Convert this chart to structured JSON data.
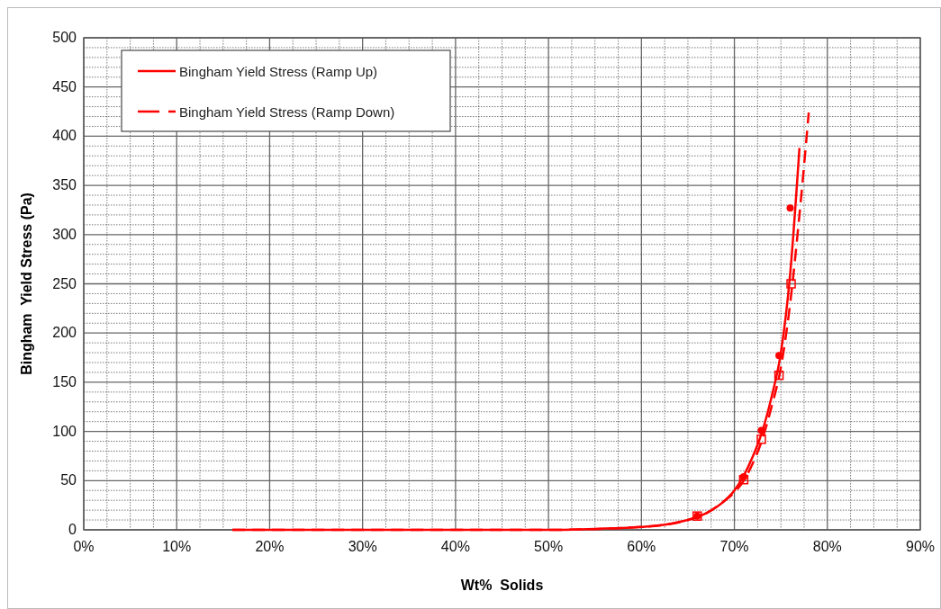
{
  "chart_data": {
    "type": "line",
    "xlabel": "Wt%  Solids",
    "ylabel": "Bingham  Yield Stress (Pa)",
    "xlim": [
      0,
      90
    ],
    "xticks": [
      {
        "value": 0,
        "label": "0%"
      },
      {
        "value": 10,
        "label": "10%"
      },
      {
        "value": 20,
        "label": "20%"
      },
      {
        "value": 30,
        "label": "30%"
      },
      {
        "value": 40,
        "label": "40%"
      },
      {
        "value": 50,
        "label": "50%"
      },
      {
        "value": 60,
        "label": "60%"
      },
      {
        "value": 70,
        "label": "70%"
      },
      {
        "value": 80,
        "label": "80%"
      },
      {
        "value": 90,
        "label": "90%"
      }
    ],
    "ylim": [
      0,
      500
    ],
    "yticks": [
      0,
      50,
      100,
      150,
      200,
      250,
      300,
      350,
      400,
      450,
      500
    ],
    "grid": true,
    "legend": "top left",
    "series": [
      {
        "name": "Bingham Yield Stress (Ramp Up)",
        "color": "#ff0000",
        "line_style": "solid",
        "marker": "none",
        "x": [
          16,
          40,
          50,
          55,
          60,
          63,
          65,
          67,
          69,
          70,
          71,
          72,
          73,
          74,
          75,
          76,
          77
        ],
        "values": [
          0,
          0,
          0,
          1,
          3,
          6,
          10,
          17,
          30,
          40,
          55,
          75,
          100,
          135,
          180,
          260,
          388
        ]
      },
      {
        "name": "Bingham Yield Stress (Ramp Down)",
        "color": "#ff0000",
        "line_style": "dashed",
        "marker": "none",
        "x": [
          16,
          50,
          60,
          65,
          67,
          69,
          70,
          71,
          72,
          73,
          74,
          75,
          76,
          77,
          78
        ],
        "values": [
          0,
          0,
          3,
          10,
          17,
          30,
          38,
          50,
          68,
          92,
          125,
          165,
          230,
          320,
          424
        ]
      },
      {
        "type": "scatter",
        "color": "#ff0000",
        "marker": "circle",
        "x": [
          66,
          71,
          72.9,
          74.8,
          76
        ],
        "values": [
          14,
          54,
          101,
          177,
          327
        ]
      },
      {
        "type": "scatter",
        "color": "#ff0000",
        "marker": "square",
        "x": [
          66,
          71,
          72.9,
          74.8,
          76.1
        ],
        "values": [
          14,
          51,
          92,
          157,
          250
        ]
      }
    ]
  }
}
